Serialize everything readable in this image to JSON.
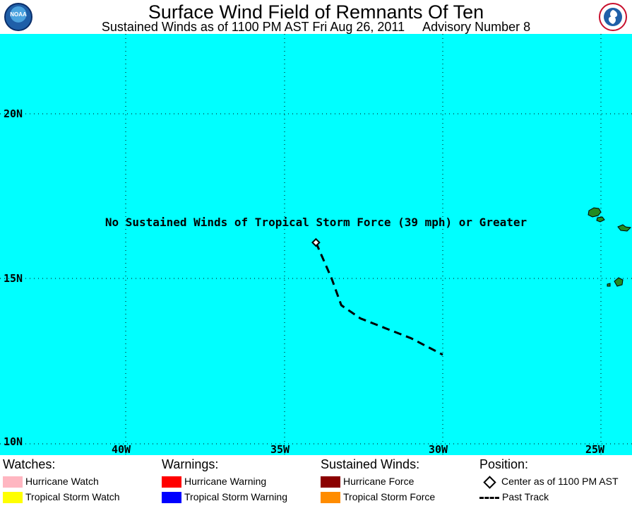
{
  "header": {
    "title": "Surface Wind Field of Remnants Of Ten",
    "subtitle_winds": "Sustained Winds as of 1100 PM AST Fri Aug 26, 2011",
    "subtitle_advisory": "Advisory Number 8",
    "left_logo": "noaa-logo-icon",
    "left_logo_text": "NOAA",
    "right_logo": "national-weather-service-logo-icon"
  },
  "map": {
    "background_color": "#00ffff",
    "land_color": "#228b22",
    "lat_labels": [
      "20N",
      "15N",
      "10N"
    ],
    "lon_labels": [
      "40W",
      "35W",
      "30W",
      "25W"
    ],
    "notice": "No Sustained Winds of Tropical Storm Force (39 mph) or Greater",
    "storm_center": {
      "lat": 16.1,
      "lon": -34.0
    },
    "past_track": [
      {
        "lat": 16.1,
        "lon": -34.0
      },
      {
        "lat": 15.0,
        "lon": -33.5
      },
      {
        "lat": 14.2,
        "lon": -33.2
      },
      {
        "lat": 13.8,
        "lon": -32.6
      },
      {
        "lat": 13.5,
        "lon": -31.8
      },
      {
        "lat": 13.2,
        "lon": -31.0
      },
      {
        "lat": 12.7,
        "lon": -30.0
      }
    ]
  },
  "legend": {
    "watches": {
      "heading": "Watches:",
      "items": [
        {
          "label": "Hurricane Watch",
          "color": "#ffb6c1"
        },
        {
          "label": "Tropical Storm Watch",
          "color": "#ffff00"
        }
      ]
    },
    "warnings": {
      "heading": "Warnings:",
      "items": [
        {
          "label": "Hurricane Warning",
          "color": "#ff0000"
        },
        {
          "label": "Tropical Storm Warning",
          "color": "#0000ff"
        }
      ]
    },
    "winds": {
      "heading": "Sustained Winds:",
      "items": [
        {
          "label": "Hurricane Force",
          "color": "#8b0000"
        },
        {
          "label": "Tropical Storm Force",
          "color": "#ff8c00"
        }
      ]
    },
    "position": {
      "heading": "Position:",
      "center_label": "Center as of 1100 PM AST",
      "track_label": "Past Track"
    }
  }
}
